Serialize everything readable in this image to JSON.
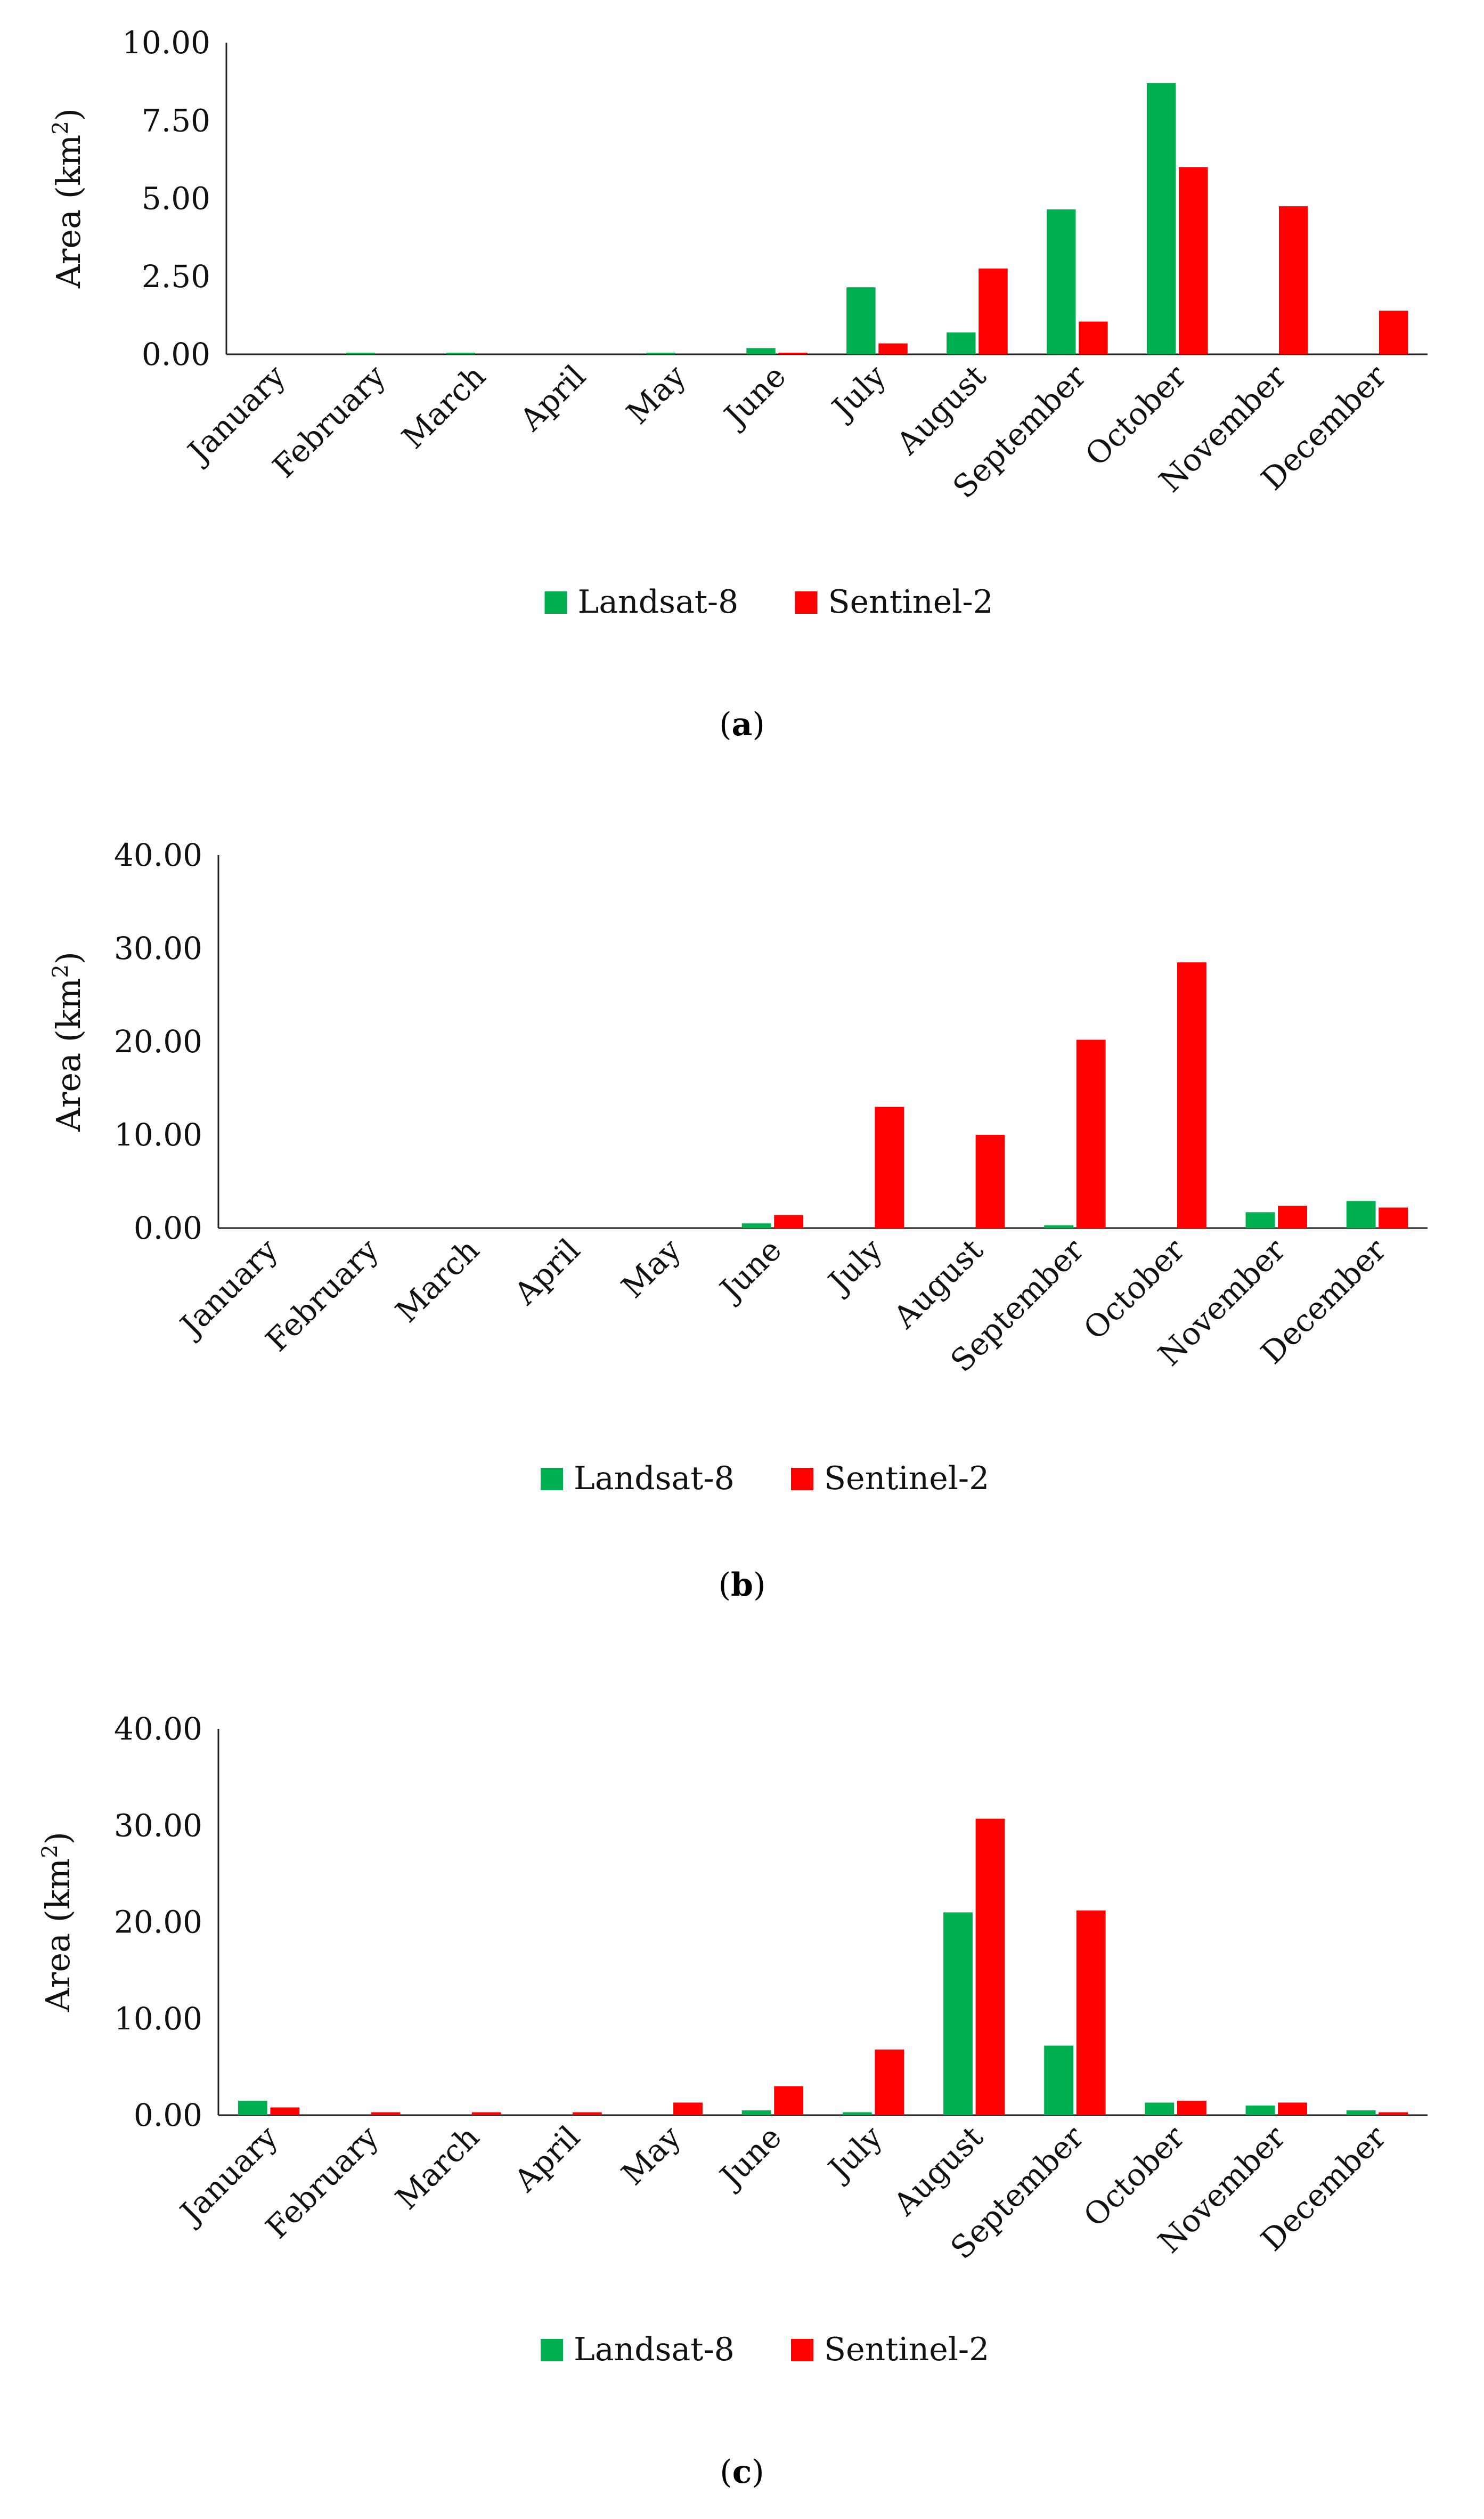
{
  "colors": {
    "landsat": "#00B050",
    "sentinel": "#FF0000",
    "axis": "#222222"
  },
  "chart_data": [
    {
      "type": "bar",
      "caption_letter": "a",
      "title": "",
      "xlabel": "",
      "ylabel": "Area (km",
      "ylabel_sup": "2",
      "ylabel_end": ")",
      "ylim": [
        0,
        10
      ],
      "yticks": [
        "0.00",
        "2.50",
        "5.00",
        "7.50",
        "10.00"
      ],
      "categories": [
        "January",
        "February",
        "March",
        "April",
        "May",
        "June",
        "July",
        "August",
        "September",
        "October",
        "November",
        "December"
      ],
      "series": [
        {
          "name": "Landsat-8",
          "values": [
            0,
            0.05,
            0.05,
            0,
            0.05,
            0.2,
            2.15,
            0.7,
            4.65,
            8.7,
            0,
            0
          ]
        },
        {
          "name": "Sentinel-2",
          "values": [
            0,
            0,
            0,
            0,
            0,
            0.05,
            0.35,
            2.75,
            1.05,
            6.0,
            4.75,
            1.4
          ]
        }
      ]
    },
    {
      "type": "bar",
      "caption_letter": "b",
      "title": "",
      "xlabel": "",
      "ylabel": "Area (km",
      "ylabel_sup": "2",
      "ylabel_end": ")",
      "ylim": [
        0,
        40
      ],
      "yticks": [
        "0.00",
        "10.00",
        "20.00",
        "30.00",
        "40.00"
      ],
      "categories": [
        "January",
        "February",
        "March",
        "April",
        "May",
        "June",
        "July",
        "August",
        "September",
        "October",
        "November",
        "December"
      ],
      "series": [
        {
          "name": "Landsat-8",
          "values": [
            0,
            0,
            0,
            0,
            0,
            0.5,
            0,
            0,
            0.3,
            0,
            1.7,
            2.9
          ]
        },
        {
          "name": "Sentinel-2",
          "values": [
            0,
            0,
            0,
            0,
            0,
            1.4,
            13.0,
            10.0,
            20.2,
            28.5,
            2.4,
            2.2
          ]
        }
      ]
    },
    {
      "type": "bar",
      "caption_letter": "c",
      "title": "",
      "xlabel": "",
      "ylabel": "Area (km",
      "ylabel_sup": "2",
      "ylabel_end": ")",
      "ylim": [
        0,
        40
      ],
      "yticks": [
        "0.00",
        "10.00",
        "20.00",
        "30.00",
        "40.00"
      ],
      "categories": [
        "January",
        "February",
        "March",
        "April",
        "May",
        "June",
        "July",
        "August",
        "September",
        "October",
        "November",
        "December"
      ],
      "series": [
        {
          "name": "Landsat-8",
          "values": [
            1.5,
            0,
            0,
            0,
            0,
            0.5,
            0.3,
            21.0,
            7.2,
            1.3,
            1.0,
            0.5
          ]
        },
        {
          "name": "Sentinel-2",
          "values": [
            0.8,
            0.3,
            0.3,
            0.3,
            1.3,
            3.0,
            6.8,
            30.7,
            21.2,
            1.5,
            1.3,
            0.3
          ]
        }
      ]
    }
  ]
}
